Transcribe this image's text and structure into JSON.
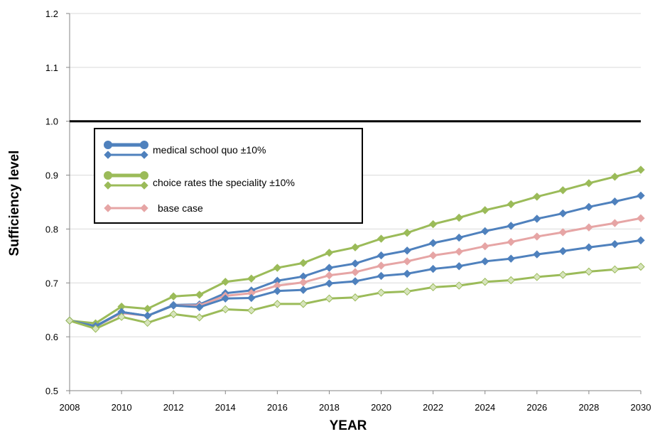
{
  "chart_data": {
    "type": "line",
    "title": "",
    "xlabel": "YEAR",
    "ylabel": "Sufficiency level",
    "xlim": [
      2008,
      2030
    ],
    "ylim": [
      0.5,
      1.2
    ],
    "x_ticks": [
      "2008",
      "2010",
      "2012",
      "2014",
      "2016",
      "2018",
      "2020",
      "2022",
      "2024",
      "2026",
      "2028",
      "2030"
    ],
    "y_ticks": [
      "0.5",
      "0.6",
      "0.7",
      "0.8",
      "0.9",
      "1.0",
      "1.1",
      "1.2"
    ],
    "grid": "horizontal",
    "reference_line": 1.0,
    "legend_position": "upper-left",
    "legend": {
      "entry1": "medical school quo ±10%",
      "entry2": "choice rates the speciality ±10%",
      "entry3": "base case"
    },
    "x": [
      2008,
      2009,
      2010,
      2011,
      2012,
      2013,
      2014,
      2015,
      2016,
      2017,
      2018,
      2019,
      2020,
      2021,
      2022,
      2023,
      2024,
      2025,
      2026,
      2027,
      2028,
      2029,
      2030
    ],
    "series": [
      {
        "group": "choice",
        "variant": "+10%",
        "color": "#9bbb59",
        "marker": "diamond",
        "fill": "#9bbb59",
        "values": [
          0.63,
          0.625,
          0.656,
          0.652,
          0.675,
          0.678,
          0.702,
          0.708,
          0.728,
          0.737,
          0.756,
          0.766,
          0.782,
          0.793,
          0.809,
          0.821,
          0.835,
          0.846,
          0.86,
          0.872,
          0.885,
          0.897,
          0.91
        ]
      },
      {
        "group": "quo",
        "variant": "+10%",
        "color": "#4f81bd",
        "marker": "diamond",
        "fill": "#4f81bd",
        "values": [
          0.63,
          0.62,
          0.646,
          0.639,
          0.659,
          0.66,
          0.681,
          0.686,
          0.704,
          0.712,
          0.728,
          0.736,
          0.751,
          0.76,
          0.774,
          0.784,
          0.796,
          0.806,
          0.819,
          0.829,
          0.841,
          0.851,
          0.862
        ]
      },
      {
        "group": "base",
        "variant": "base",
        "color": "#e6a5a5",
        "marker": "diamond",
        "fill": "#e6a5a5",
        "values": [
          0.63,
          0.619,
          0.644,
          0.639,
          0.658,
          0.658,
          0.676,
          0.681,
          0.695,
          0.701,
          0.714,
          0.72,
          0.732,
          0.74,
          0.751,
          0.758,
          0.768,
          0.776,
          0.786,
          0.794,
          0.803,
          0.811,
          0.82
        ]
      },
      {
        "group": "quo",
        "variant": "-10%",
        "color": "#4f81bd",
        "marker": "diamond",
        "fill": "#4f81bd",
        "values": [
          0.63,
          0.619,
          0.646,
          0.639,
          0.658,
          0.655,
          0.671,
          0.672,
          0.685,
          0.687,
          0.699,
          0.703,
          0.713,
          0.717,
          0.726,
          0.731,
          0.74,
          0.745,
          0.753,
          0.759,
          0.766,
          0.772,
          0.779
        ]
      },
      {
        "group": "choice",
        "variant": "-10%",
        "color": "#9bbb59",
        "marker": "diamond",
        "fill": "#d7e4bd",
        "values": [
          0.63,
          0.615,
          0.637,
          0.626,
          0.642,
          0.636,
          0.651,
          0.649,
          0.661,
          0.661,
          0.671,
          0.673,
          0.682,
          0.684,
          0.692,
          0.695,
          0.702,
          0.705,
          0.711,
          0.715,
          0.721,
          0.725,
          0.73
        ]
      }
    ]
  },
  "colors": {
    "quo": "#4f81bd",
    "choice": "#9bbb59",
    "base": "#e6a5a5",
    "grid": "#d9d9d9",
    "reference": "#000000"
  }
}
